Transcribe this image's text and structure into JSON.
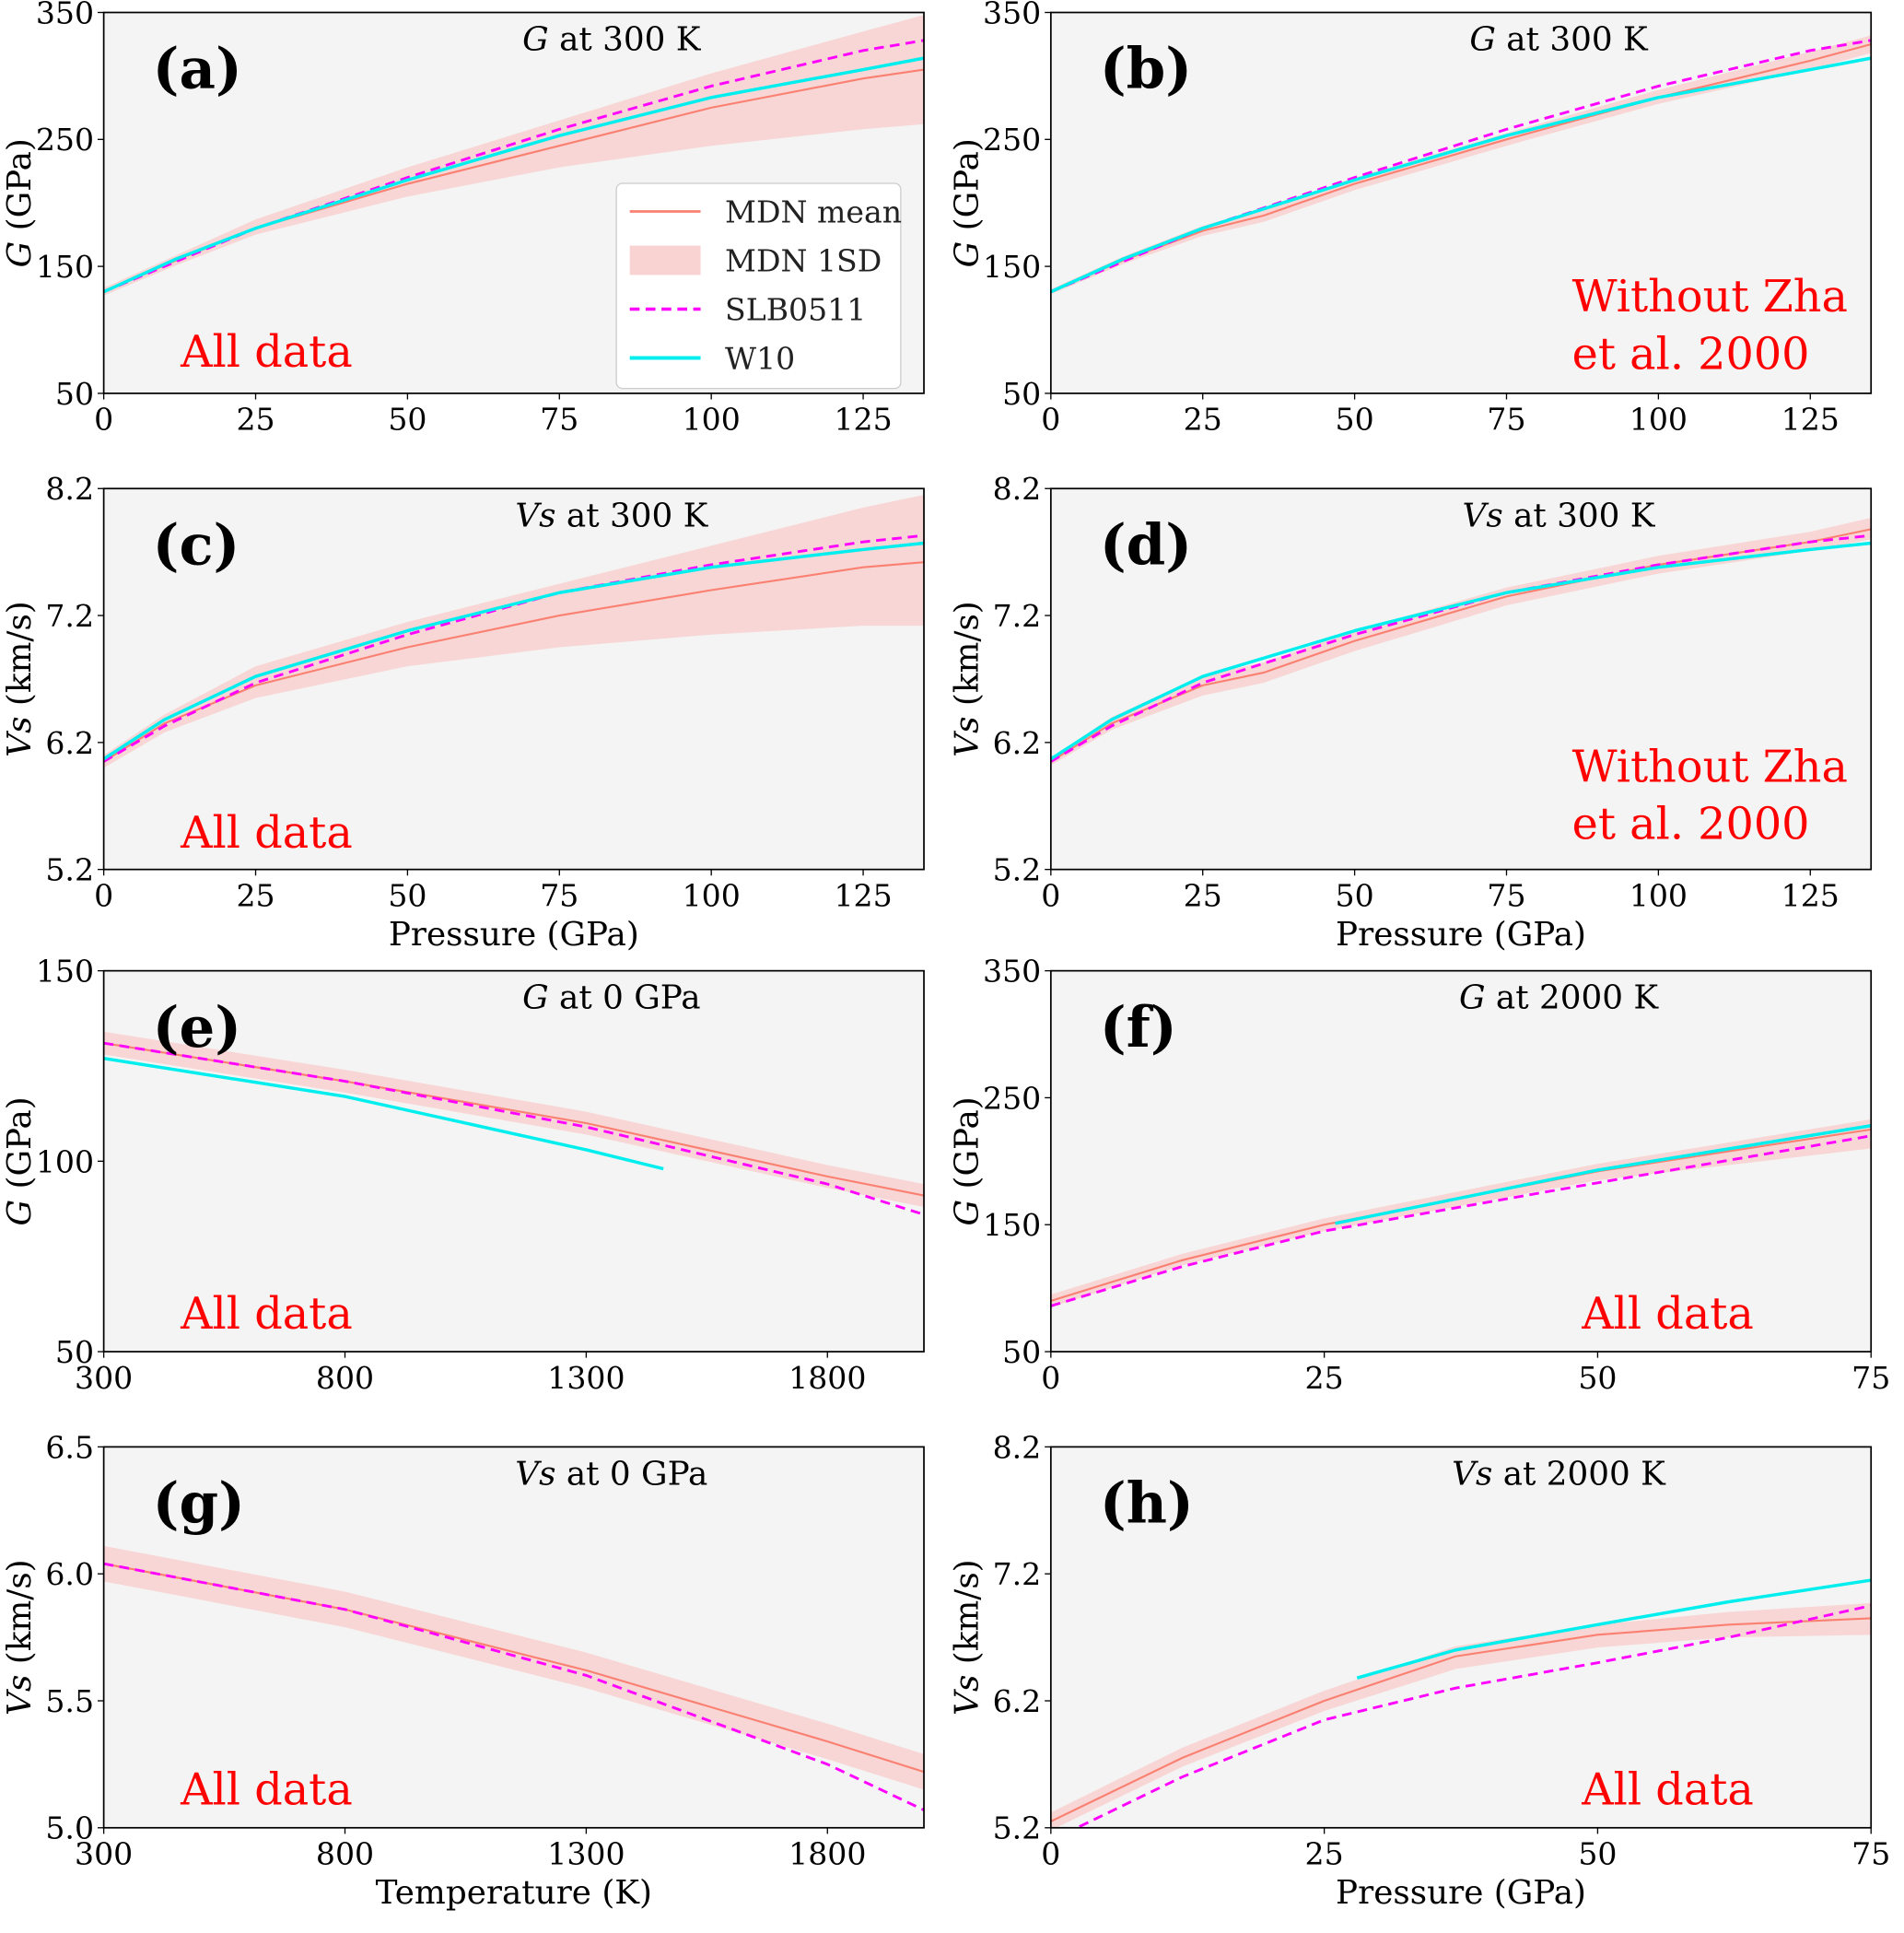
{
  "colors": {
    "mdn_mean": "#fa8072",
    "mdn_band": "#f8d3d1",
    "slb": "#ff00ff",
    "w10": "#00eeee",
    "background": "#f4f4f4",
    "annotation": "#ff0000"
  },
  "legend": {
    "placement": "center-right of panel (a)",
    "entries": [
      "MDN mean",
      "MDN 1SD",
      "SLB0511",
      "W10"
    ]
  },
  "chart_data": [
    {
      "type": "line",
      "panel": "(a)",
      "title_var": "G",
      "title_rest": "at 300 K",
      "annotation": [
        "All data"
      ],
      "xlabel": "",
      "ylabel_var": "G",
      "ylabel_rest": "(GPa)",
      "xlim": [
        0,
        135
      ],
      "ylim": [
        50,
        350
      ],
      "xticks": [
        0,
        25,
        50,
        75,
        100,
        125
      ],
      "yticks": [
        50,
        150,
        250,
        350
      ],
      "band": {
        "x": [
          0,
          12,
          25,
          50,
          75,
          100,
          125,
          135
        ],
        "lower": [
          127,
          151,
          175,
          205,
          228,
          245,
          258,
          262
        ],
        "upper": [
          133,
          159,
          187,
          228,
          265,
          302,
          335,
          348
        ]
      },
      "series": [
        {
          "name": "MDN mean",
          "x": [
            0,
            12,
            25,
            50,
            75,
            100,
            125,
            135
          ],
          "y": [
            130,
            155,
            180,
            215,
            245,
            275,
            298,
            305
          ]
        },
        {
          "name": "SLB0511",
          "x": [
            0,
            12,
            25,
            50,
            75,
            100,
            125,
            135
          ],
          "y": [
            130,
            154,
            180,
            220,
            258,
            292,
            320,
            328
          ]
        },
        {
          "name": "W10",
          "x": [
            0,
            12,
            25,
            50,
            75,
            100,
            125,
            135
          ],
          "y": [
            130,
            156,
            180,
            218,
            253,
            283,
            305,
            314
          ]
        }
      ]
    },
    {
      "type": "line",
      "panel": "(b)",
      "title_var": "G",
      "title_rest": "at 300 K",
      "annotation": [
        "Without Zha",
        "et al. 2000"
      ],
      "xlabel": "",
      "ylabel_var": "G",
      "ylabel_rest": "(GPa)",
      "xlim": [
        0,
        135
      ],
      "ylim": [
        50,
        350
      ],
      "xticks": [
        0,
        25,
        50,
        75,
        100,
        125
      ],
      "yticks": [
        50,
        150,
        250,
        350
      ],
      "band": {
        "x": [
          0,
          12,
          25,
          35,
          50,
          75,
          100,
          125,
          135
        ],
        "lower": [
          128,
          152,
          174,
          185,
          210,
          245,
          278,
          305,
          318
        ],
        "upper": [
          132,
          158,
          182,
          195,
          220,
          255,
          289,
          319,
          332
        ]
      },
      "series": [
        {
          "name": "MDN mean",
          "x": [
            0,
            12,
            25,
            35,
            50,
            75,
            100,
            125,
            135
          ],
          "y": [
            130,
            155,
            178,
            190,
            215,
            250,
            283,
            312,
            325
          ]
        },
        {
          "name": "SLB0511",
          "x": [
            0,
            12,
            25,
            50,
            75,
            100,
            125,
            135
          ],
          "y": [
            130,
            154,
            180,
            220,
            258,
            292,
            320,
            328
          ]
        },
        {
          "name": "W10",
          "x": [
            0,
            12,
            25,
            50,
            75,
            100,
            125,
            135
          ],
          "y": [
            130,
            156,
            180,
            218,
            253,
            283,
            305,
            314
          ]
        }
      ]
    },
    {
      "type": "line",
      "panel": "(c)",
      "title_var": "Vs",
      "title_rest": "at 300 K",
      "annotation": [
        "All data"
      ],
      "xlabel": "Pressure (GPa)",
      "ylabel_var": "Vs",
      "ylabel_rest": "(km/s)",
      "xlim": [
        0,
        135
      ],
      "ylim": [
        5.2,
        8.2
      ],
      "xticks": [
        0,
        25,
        50,
        75,
        100,
        125
      ],
      "yticks": [
        5.2,
        6.2,
        7.2,
        8.2
      ],
      "band": {
        "x": [
          0,
          10,
          25,
          50,
          75,
          100,
          125,
          135
        ],
        "lower": [
          6.0,
          6.28,
          6.55,
          6.8,
          6.95,
          7.05,
          7.12,
          7.12
        ],
        "upper": [
          6.1,
          6.42,
          6.8,
          7.15,
          7.45,
          7.75,
          8.05,
          8.15
        ]
      },
      "series": [
        {
          "name": "MDN mean",
          "x": [
            0,
            10,
            25,
            50,
            75,
            100,
            125,
            135
          ],
          "y": [
            6.05,
            6.35,
            6.65,
            6.95,
            7.2,
            7.4,
            7.58,
            7.62
          ]
        },
        {
          "name": "SLB0511",
          "x": [
            0,
            10,
            25,
            50,
            75,
            100,
            125,
            135
          ],
          "y": [
            6.05,
            6.33,
            6.67,
            7.05,
            7.38,
            7.6,
            7.78,
            7.83
          ]
        },
        {
          "name": "W10",
          "x": [
            0,
            10,
            25,
            50,
            75,
            100,
            125,
            135
          ],
          "y": [
            6.07,
            6.38,
            6.72,
            7.08,
            7.38,
            7.58,
            7.72,
            7.77
          ]
        }
      ]
    },
    {
      "type": "line",
      "panel": "(d)",
      "title_var": "Vs",
      "title_rest": "at 300 K",
      "annotation": [
        "Without Zha",
        "et al. 2000"
      ],
      "xlabel": "Pressure (GPa)",
      "ylabel_var": "Vs",
      "ylabel_rest": "(km/s)",
      "xlim": [
        0,
        135
      ],
      "ylim": [
        5.2,
        8.2
      ],
      "xticks": [
        0,
        25,
        50,
        75,
        100,
        125
      ],
      "yticks": [
        5.2,
        6.2,
        7.2,
        8.2
      ],
      "band": {
        "x": [
          0,
          10,
          25,
          35,
          50,
          75,
          100,
          125,
          135
        ],
        "lower": [
          6.02,
          6.3,
          6.57,
          6.67,
          6.92,
          7.28,
          7.53,
          7.71,
          7.8
        ],
        "upper": [
          6.08,
          6.4,
          6.73,
          6.83,
          7.08,
          7.42,
          7.67,
          7.86,
          7.97
        ]
      },
      "series": [
        {
          "name": "MDN mean",
          "x": [
            0,
            10,
            25,
            35,
            50,
            75,
            100,
            125,
            135
          ],
          "y": [
            6.05,
            6.35,
            6.65,
            6.75,
            7.0,
            7.35,
            7.6,
            7.78,
            7.88
          ]
        },
        {
          "name": "SLB0511",
          "x": [
            0,
            10,
            25,
            50,
            75,
            100,
            125,
            135
          ],
          "y": [
            6.05,
            6.33,
            6.67,
            7.05,
            7.38,
            7.6,
            7.78,
            7.83
          ]
        },
        {
          "name": "W10",
          "x": [
            0,
            10,
            25,
            50,
            75,
            100,
            125,
            135
          ],
          "y": [
            6.07,
            6.38,
            6.72,
            7.08,
            7.38,
            7.58,
            7.72,
            7.77
          ]
        }
      ]
    },
    {
      "type": "line",
      "panel": "(e)",
      "title_var": "G",
      "title_rest": "at 0 GPa",
      "annotation": [
        "All data"
      ],
      "xlabel": "",
      "ylabel_var": "G",
      "ylabel_rest": "(GPa)",
      "xlim": [
        300,
        2000
      ],
      "ylim": [
        50,
        150
      ],
      "xticks": [
        300,
        800,
        1300,
        1800
      ],
      "yticks": [
        50,
        100,
        150
      ],
      "band": {
        "x": [
          300,
          800,
          1300,
          1800,
          2000
        ],
        "lower": [
          128,
          118,
          107,
          93,
          88
        ],
        "upper": [
          134,
          124,
          113,
          99,
          94
        ]
      },
      "series": [
        {
          "name": "MDN mean",
          "x": [
            300,
            800,
            1300,
            1800,
            2000
          ],
          "y": [
            131,
            121,
            110,
            96,
            91
          ]
        },
        {
          "name": "SLB0511",
          "x": [
            300,
            800,
            1300,
            1800,
            2000
          ],
          "y": [
            131,
            121,
            109,
            94,
            86
          ]
        },
        {
          "name": "W10",
          "x": [
            300,
            800,
            1300,
            1460
          ],
          "y": [
            127,
            117,
            103,
            98
          ]
        }
      ]
    },
    {
      "type": "line",
      "panel": "(f)",
      "title_var": "G",
      "title_rest": "at 2000 K",
      "annotation": [
        "All data"
      ],
      "xlabel": "",
      "ylabel_var": "G",
      "ylabel_rest": "(GPa)",
      "xlim": [
        0,
        75
      ],
      "ylim": [
        50,
        350
      ],
      "xticks": [
        0,
        25,
        50,
        75
      ],
      "yticks": [
        50,
        150,
        250,
        350
      ],
      "band": {
        "x": [
          0,
          12,
          25,
          50,
          75
        ],
        "lower": [
          85,
          118,
          145,
          185,
          210
        ],
        "upper": [
          95,
          127,
          155,
          198,
          233
        ]
      },
      "series": [
        {
          "name": "MDN mean",
          "x": [
            0,
            12,
            25,
            50,
            75
          ],
          "y": [
            90,
            122,
            150,
            192,
            225
          ]
        },
        {
          "name": "SLB0511",
          "x": [
            0,
            12,
            25,
            50,
            75
          ],
          "y": [
            86,
            117,
            145,
            183,
            220
          ]
        },
        {
          "name": "W10",
          "x": [
            26,
            50,
            75
          ],
          "y": [
            151,
            193,
            228
          ]
        }
      ]
    },
    {
      "type": "line",
      "panel": "(g)",
      "title_var": "Vs",
      "title_rest": "at 0 GPa",
      "annotation": [
        "All data"
      ],
      "xlabel": "Temperature (K)",
      "ylabel_var": "Vs",
      "ylabel_rest": "(km/s)",
      "xlim": [
        300,
        2000
      ],
      "ylim": [
        5.0,
        6.5
      ],
      "xticks": [
        300,
        800,
        1300,
        1800
      ],
      "yticks": [
        5.0,
        5.5,
        6.0,
        6.5
      ],
      "band": {
        "x": [
          300,
          800,
          1300,
          1800,
          2000
        ],
        "lower": [
          5.97,
          5.79,
          5.55,
          5.27,
          5.15
        ],
        "upper": [
          6.11,
          5.93,
          5.69,
          5.41,
          5.29
        ]
      },
      "series": [
        {
          "name": "MDN mean",
          "x": [
            300,
            800,
            1300,
            1800,
            2000
          ],
          "y": [
            6.04,
            5.86,
            5.62,
            5.34,
            5.22
          ]
        },
        {
          "name": "SLB0511",
          "x": [
            300,
            800,
            1300,
            1800,
            2000
          ],
          "y": [
            6.04,
            5.86,
            5.6,
            5.25,
            5.07
          ]
        }
      ]
    },
    {
      "type": "line",
      "panel": "(h)",
      "title_var": "Vs",
      "title_rest": "at 2000 K",
      "annotation": [
        "All data"
      ],
      "xlabel": "Pressure (GPa)",
      "ylabel_var": "Vs",
      "ylabel_rest": "(km/s)",
      "xlim": [
        0,
        75
      ],
      "ylim": [
        5.2,
        8.2
      ],
      "xticks": [
        0,
        25,
        50,
        75
      ],
      "yticks": [
        5.2,
        6.2,
        7.2,
        8.2
      ],
      "band": {
        "x": [
          0,
          12,
          25,
          37,
          50,
          62,
          75
        ],
        "lower": [
          5.18,
          5.68,
          6.12,
          6.45,
          6.62,
          6.7,
          6.72
        ],
        "upper": [
          5.32,
          5.83,
          6.28,
          6.63,
          6.8,
          6.9,
          6.97
        ]
      },
      "series": [
        {
          "name": "MDN mean",
          "x": [
            0,
            12,
            25,
            37,
            50,
            62,
            75
          ],
          "y": [
            5.25,
            5.75,
            6.2,
            6.55,
            6.72,
            6.8,
            6.85
          ]
        },
        {
          "name": "SLB0511",
          "x": [
            0,
            12,
            25,
            37,
            50,
            62,
            75
          ],
          "y": [
            5.1,
            5.6,
            6.05,
            6.3,
            6.5,
            6.7,
            6.95
          ]
        },
        {
          "name": "W10",
          "x": [
            28,
            37,
            50,
            62,
            75
          ],
          "y": [
            6.38,
            6.6,
            6.8,
            6.98,
            7.15
          ]
        }
      ]
    }
  ]
}
